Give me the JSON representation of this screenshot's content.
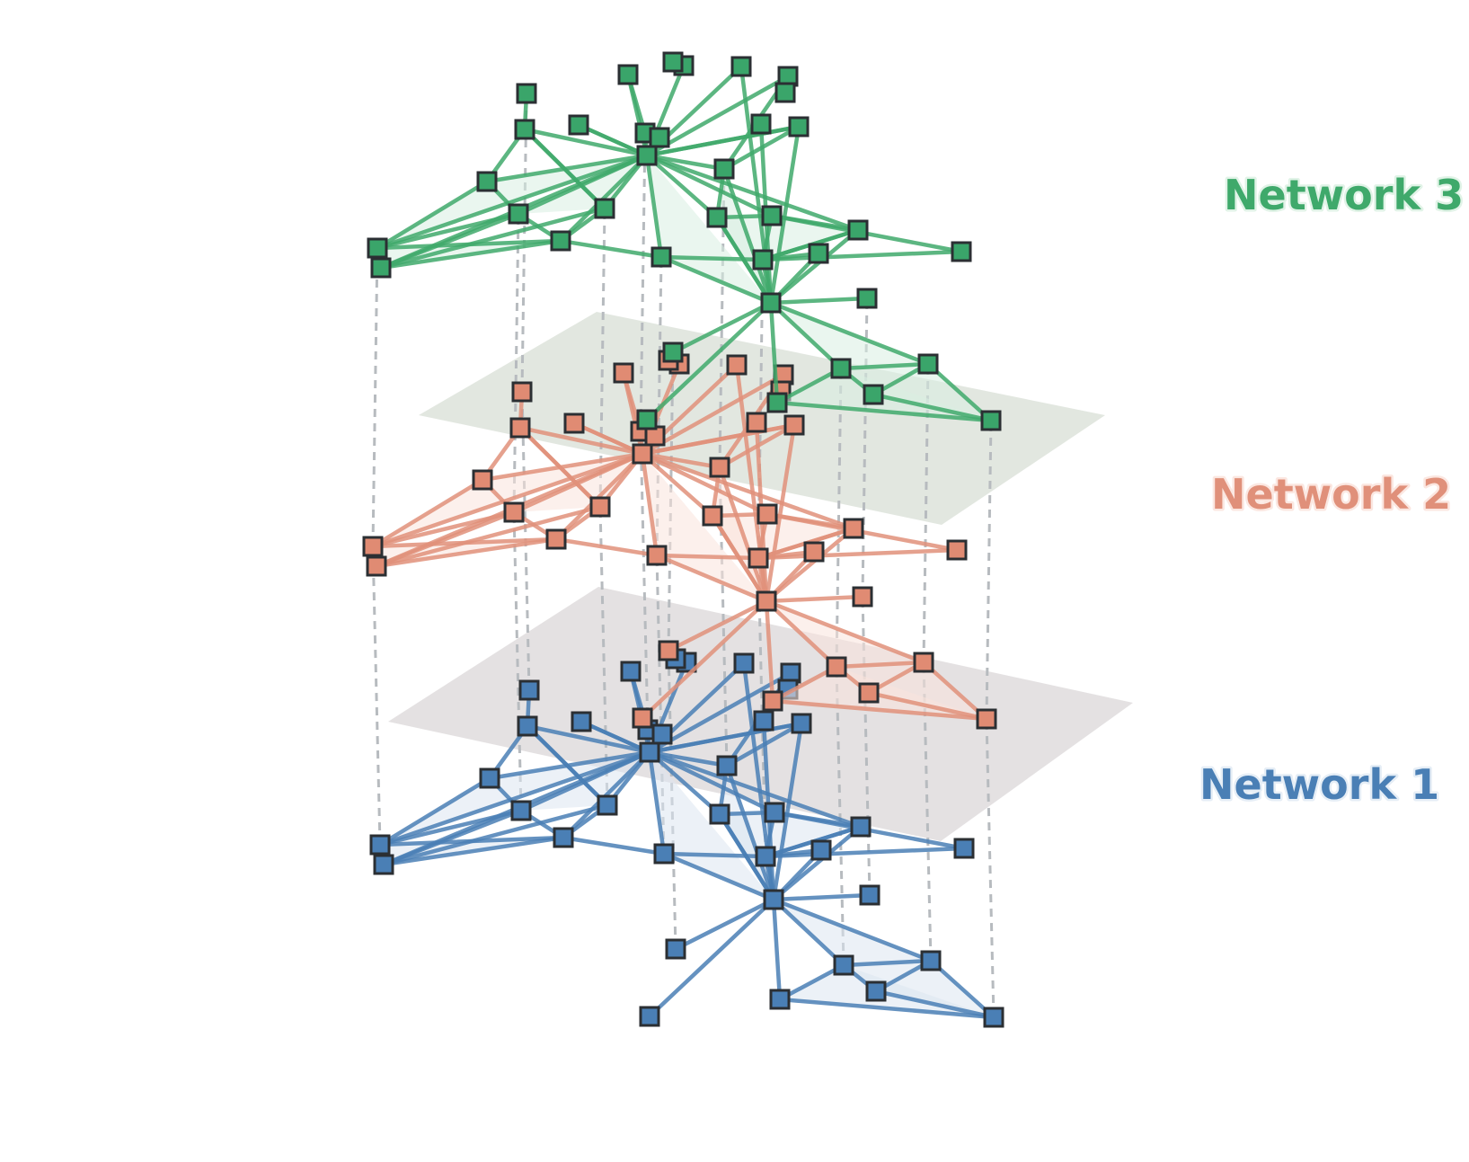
{
  "colors": {
    "background": "#ffffff",
    "node_border": "#2b2f33",
    "interlayer_link": "#b7bbbf",
    "plane_upper": "#dde3db",
    "plane_lower": "#dfdcdd"
  },
  "layers": [
    {
      "id": "network-1",
      "label": "Network 1",
      "color": "#4a7fb5",
      "node_fill": "#4a7fb5",
      "fill": "#dce6f0",
      "label_outline": "#e6eef6"
    },
    {
      "id": "network-2",
      "label": "Network 2",
      "color": "#e0907a",
      "node_fill": "#e08b73",
      "fill": "#fae3dc",
      "label_outline": "#fbe7e1"
    },
    {
      "id": "network-3",
      "label": "Network 3",
      "color": "#3fa96b",
      "node_fill": "#3aa56a",
      "fill": "#d9eee1",
      "label_outline": "#e1f3e7"
    }
  ],
  "planes": [
    {
      "id": "plane-lower",
      "between": [
        "Network 1",
        "Network 2"
      ]
    },
    {
      "id": "plane-upper",
      "between": [
        "Network 2",
        "Network 3"
      ]
    }
  ],
  "node_count": 37,
  "edge_count_per_layer": 73
}
